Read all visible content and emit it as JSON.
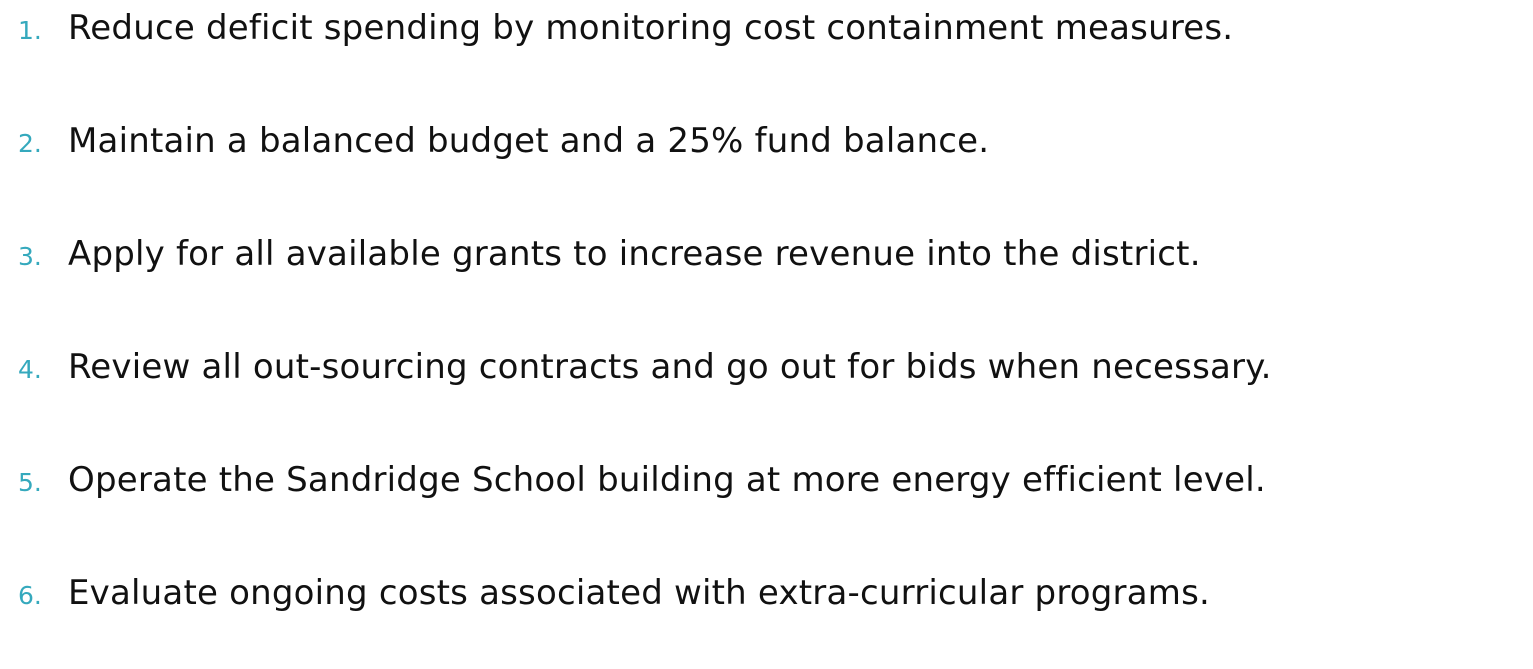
{
  "list": {
    "items": [
      {
        "number": "1.",
        "text": "Reduce deficit spending by monitoring cost containment measures."
      },
      {
        "number": "2.",
        "text": "Maintain a balanced budget and a 25% fund balance."
      },
      {
        "number": "3.",
        "text": "Apply for all available grants to increase revenue into the district."
      },
      {
        "number": "4.",
        "text": "Review all out-sourcing contracts and go out for bids when necessary."
      },
      {
        "number": "5.",
        "text": "Operate the Sandridge School building at more energy efficient level."
      },
      {
        "number": "6.",
        "text": "Evaluate ongoing costs associated with extra-curricular programs."
      }
    ]
  }
}
